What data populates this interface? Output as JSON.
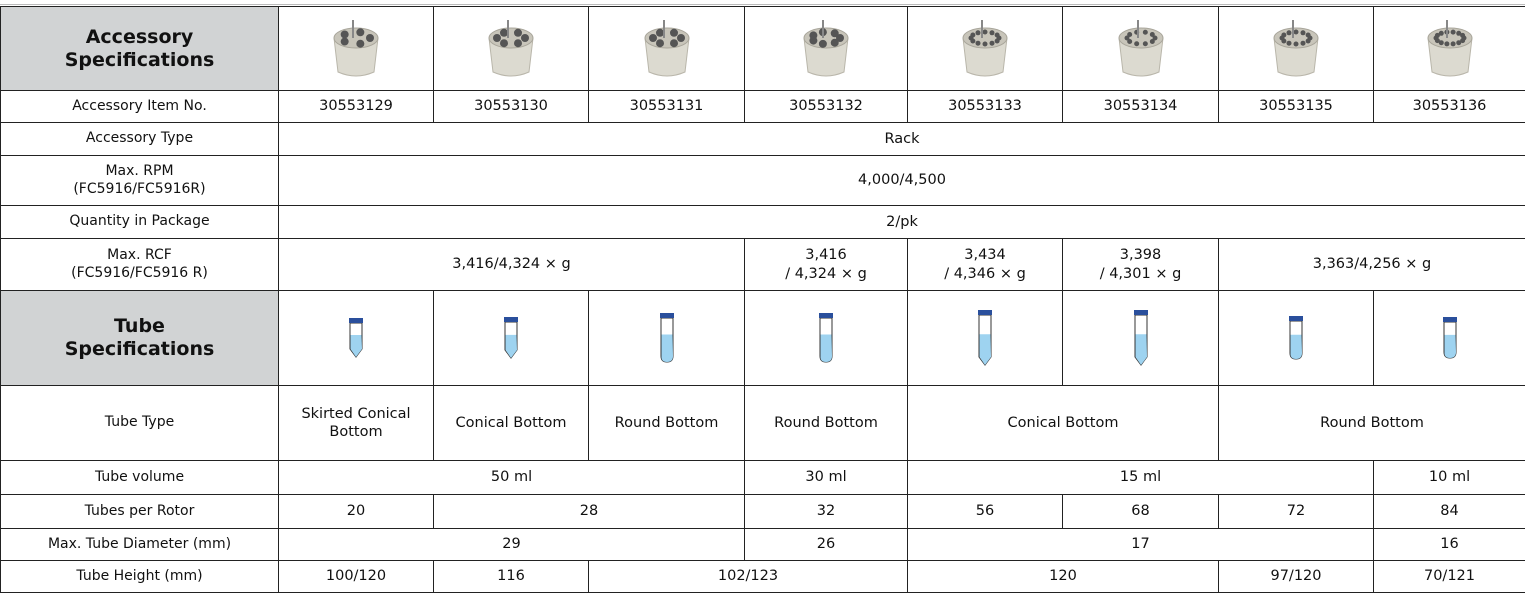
{
  "spec_table": {
    "accessory_header": "Accessory Specifications",
    "tube_header": "Tube Specifications",
    "rows": [
      {
        "label": "Accessory Item No.",
        "cells": [
          "30553129",
          "30553130",
          "30553131",
          "30553132",
          "30553133",
          "30553134",
          "30553135",
          "30553136"
        ]
      },
      {
        "label": "Accessory Type",
        "cells": [
          "Rack"
        ]
      },
      {
        "label": "Max. RPM\n(FC5916/FC5916R)",
        "cells": [
          "4,000/4,500"
        ]
      },
      {
        "label": "Quantity in Package",
        "cells": [
          "2/pk"
        ]
      },
      {
        "label": "Max. RCF\n(FC5916/FC5916 R)",
        "cells": [
          "3,416/4,324 × g",
          "3,416\n/ 4,324 × g",
          "3,434\n/ 4,346 × g",
          "3,398\n/ 4,301 × g",
          "3,363/4,256 × g"
        ]
      },
      {
        "label": "Tube Type",
        "cells": [
          "Skirted Conical\nBottom",
          "Conical Bottom",
          "Round Bottom",
          "Round Bottom",
          "Conical Bottom",
          "Round Bottom"
        ]
      },
      {
        "label": "Tube volume",
        "cells": [
          "50 ml",
          "30 ml",
          "15 ml",
          "10 ml"
        ]
      },
      {
        "label": "Tubes per Rotor",
        "cells": [
          "20",
          "28",
          "32",
          "56",
          "68",
          "72",
          "84"
        ]
      },
      {
        "label": "Max. Tube Diameter (mm)",
        "cells": [
          "29",
          "26",
          "17",
          "16"
        ]
      },
      {
        "label": "Tube Height (mm)",
        "cells": [
          "100/120",
          "116",
          "102/123",
          "120",
          "97/120",
          "70/121"
        ]
      }
    ]
  }
}
